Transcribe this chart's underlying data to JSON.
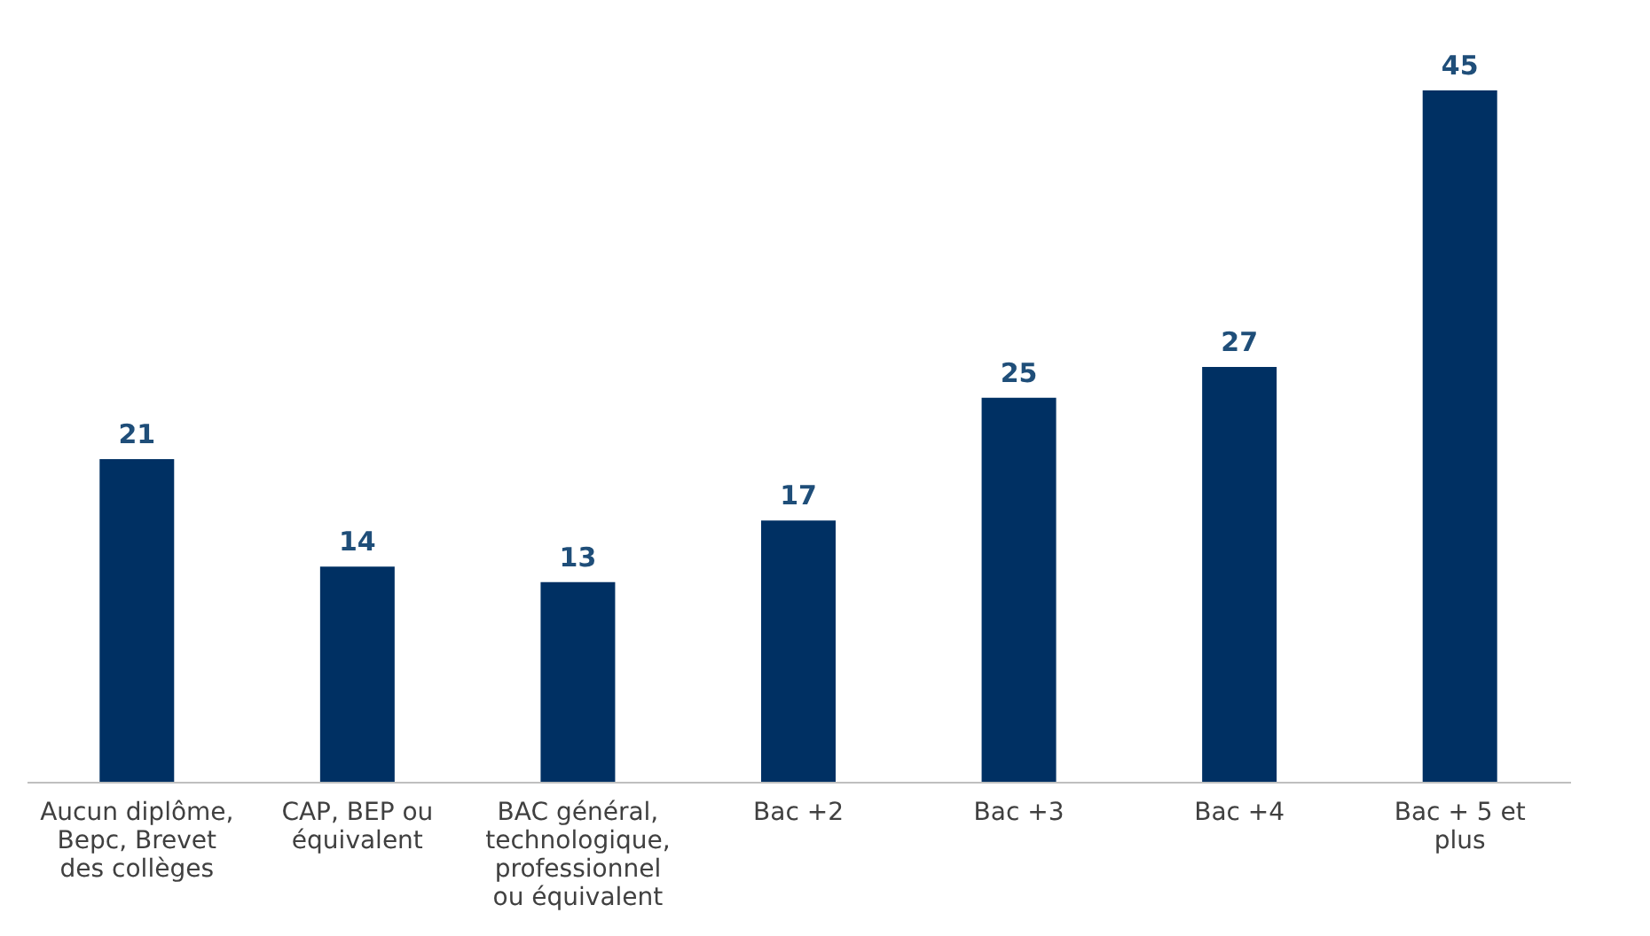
{
  "chart_data": {
    "type": "bar",
    "categories": [
      "Aucun diplôme, Bepc, Brevet des collèges",
      "CAP, BEP ou équivalent",
      "BAC général, technologique, professionnel ou équivalent",
      "Bac +2",
      "Bac +3",
      "Bac +4",
      "Bac + 5 et plus"
    ],
    "values": [
      21,
      14,
      13,
      17,
      25,
      27,
      45
    ],
    "color": "#003063",
    "data_labels": true
  }
}
